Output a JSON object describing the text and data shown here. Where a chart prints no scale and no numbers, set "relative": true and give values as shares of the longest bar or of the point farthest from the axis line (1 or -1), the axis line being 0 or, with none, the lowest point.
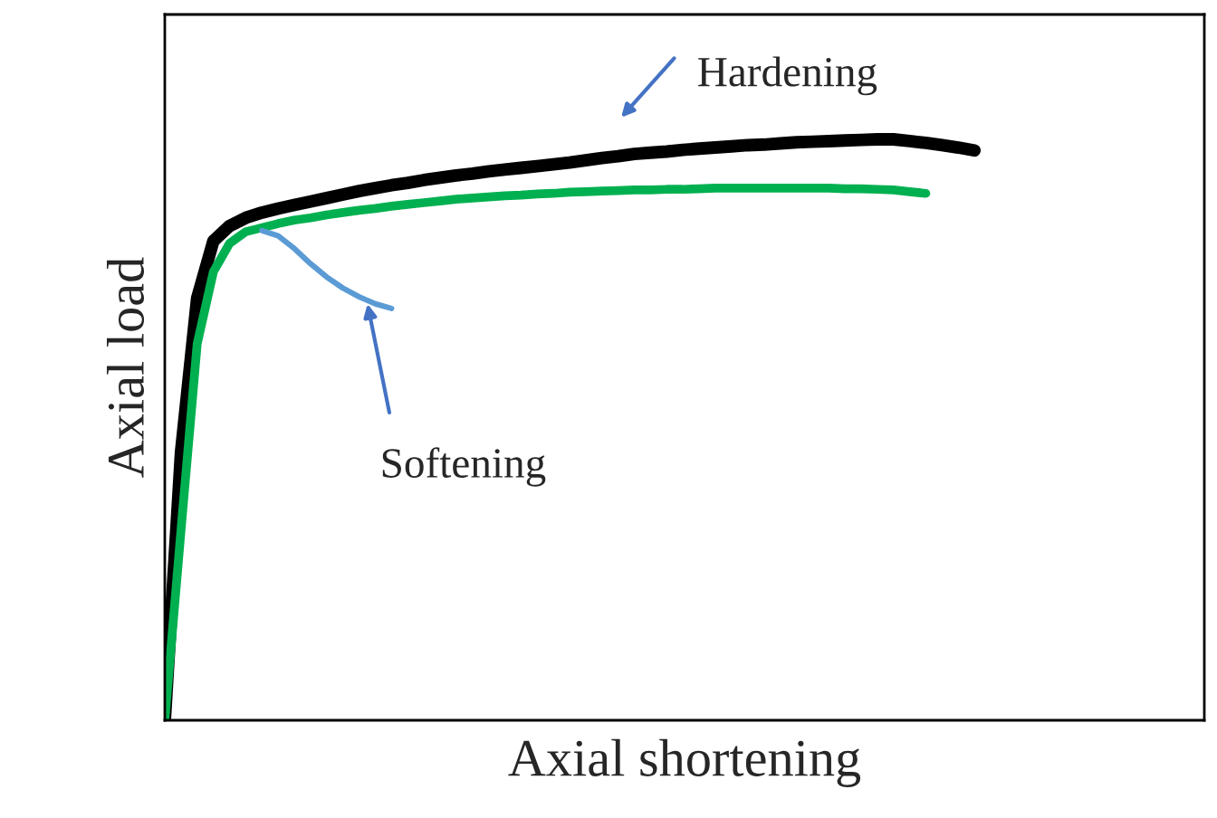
{
  "chart_data": {
    "type": "line",
    "relative": true,
    "xlabel": "Axial shortening",
    "ylabel": "Axial load",
    "legend": false,
    "marker": "none",
    "line_style": "solid",
    "categories": [
      null,
      null,
      null,
      null,
      null,
      null,
      null,
      null,
      null,
      null,
      null,
      null,
      null,
      null,
      null,
      null,
      null,
      null,
      null,
      null,
      null,
      null,
      null,
      null,
      null,
      null,
      null,
      null,
      null,
      null,
      null,
      null,
      null,
      null,
      null,
      null,
      null,
      null,
      null,
      null,
      null,
      null,
      null,
      null,
      null,
      null,
      null,
      null,
      null,
      null,
      null,
      null,
      null,
      null,
      null,
      null,
      null,
      null,
      null,
      null,
      null,
      null,
      null,
      null,
      null
    ],
    "series": [
      {
        "color": "#000000",
        "values": [
          0,
          0.461,
          0.727,
          0.825,
          0.851,
          0.865,
          0.874,
          0.881,
          0.887,
          0.893,
          0.899,
          0.905,
          0.911,
          0.916,
          0.921,
          0.925,
          0.93,
          0.934,
          0.938,
          0.941,
          0.945,
          0.948,
          0.951,
          0.954,
          0.957,
          0.96,
          0.964,
          0.968,
          0.971,
          0.975,
          0.977,
          0.979,
          0.982,
          0.984,
          0.986,
          0.988,
          0.99,
          0.991,
          0.993,
          0.995,
          0.996,
          0.997,
          0.998,
          0.999,
          1.0,
          1.0,
          0.997,
          0.994,
          0.99,
          0.986,
          0.981,
          null,
          null,
          null,
          null,
          null,
          null,
          null,
          null,
          null,
          null,
          null,
          null,
          null,
          null
        ]
      },
      {
        "color": "#00b050",
        "values": [
          0,
          0.327,
          0.648,
          0.772,
          0.821,
          0.841,
          0.848,
          0.855,
          0.861,
          0.865,
          0.87,
          0.874,
          0.878,
          0.881,
          0.885,
          0.888,
          0.891,
          0.894,
          0.897,
          0.899,
          0.901,
          0.903,
          0.904,
          0.906,
          0.907,
          0.909,
          0.91,
          0.911,
          0.912,
          0.913,
          0.913,
          0.914,
          0.914,
          0.915,
          0.916,
          0.916,
          0.916,
          0.916,
          0.916,
          0.916,
          0.916,
          0.916,
          0.915,
          0.915,
          0.914,
          0.913,
          0.91,
          0.907,
          null,
          null,
          null,
          null,
          null,
          null,
          null,
          null,
          null,
          null,
          null,
          null,
          null,
          null,
          null,
          null,
          null
        ]
      },
      {
        "color": "#5b9bd5",
        "values": [
          null,
          null,
          null,
          null,
          null,
          null,
          0.843,
          0.834,
          0.812,
          0.786,
          0.763,
          0.744,
          0.729,
          0.717,
          0.709,
          null,
          null,
          null,
          null,
          null,
          null,
          null,
          null,
          null,
          null,
          null,
          null,
          null,
          null,
          null,
          null,
          null,
          null,
          null,
          null,
          null,
          null,
          null,
          null,
          null,
          null,
          null,
          null,
          null,
          null,
          null,
          null,
          null,
          null,
          null,
          null,
          null,
          null,
          null,
          null,
          null,
          null,
          null,
          null,
          null,
          null,
          null,
          null,
          null,
          null
        ]
      }
    ],
    "annotations": [
      "Hardening",
      "Softening"
    ]
  }
}
